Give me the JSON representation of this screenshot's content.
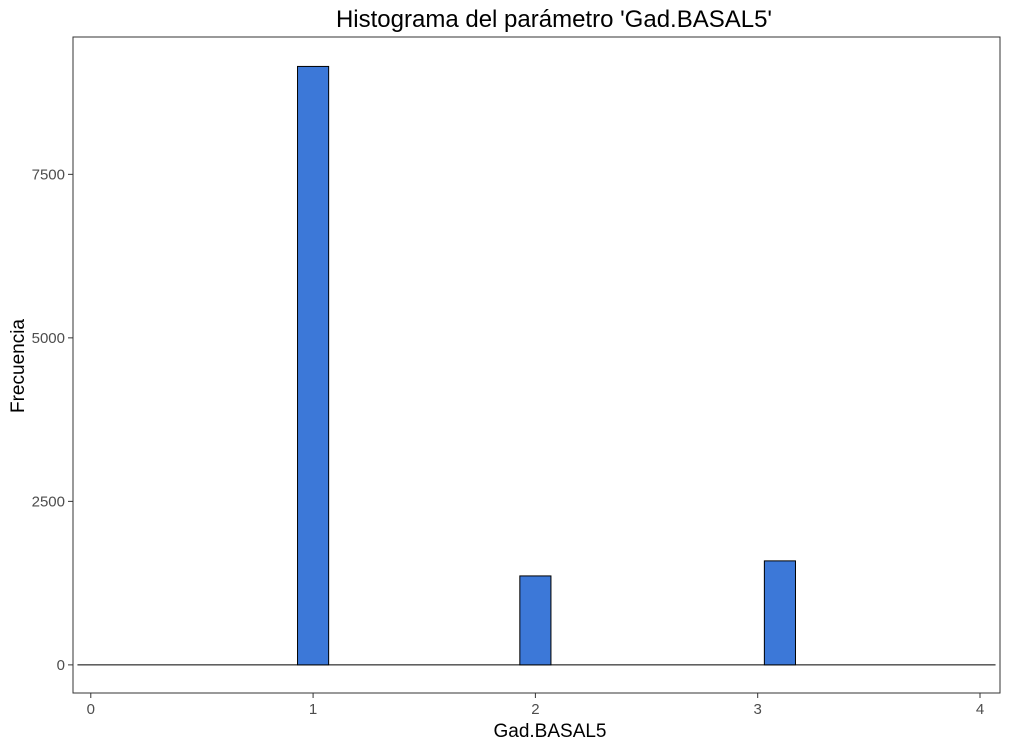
{
  "chart_data": {
    "type": "bar",
    "title": "Histograma del parámetro 'Gad.BASAL5'",
    "xlabel": "Gad.BASAL5",
    "ylabel": "Frecuencia",
    "x_ticks": [
      "0",
      "1",
      "2",
      "3",
      "4"
    ],
    "y_ticks": [
      "0",
      "2500",
      "5000",
      "7500"
    ],
    "xlim": [
      -0.08,
      4.09
    ],
    "ylim": [
      -430,
      9600
    ],
    "grid": false,
    "bar_fill": "#3c78d8",
    "bar_outline": "#000000",
    "bins": [
      {
        "x": 1.0,
        "count": 9150
      },
      {
        "x": 2.0,
        "count": 1360
      },
      {
        "x": 3.1,
        "count": 1590
      }
    ]
  }
}
